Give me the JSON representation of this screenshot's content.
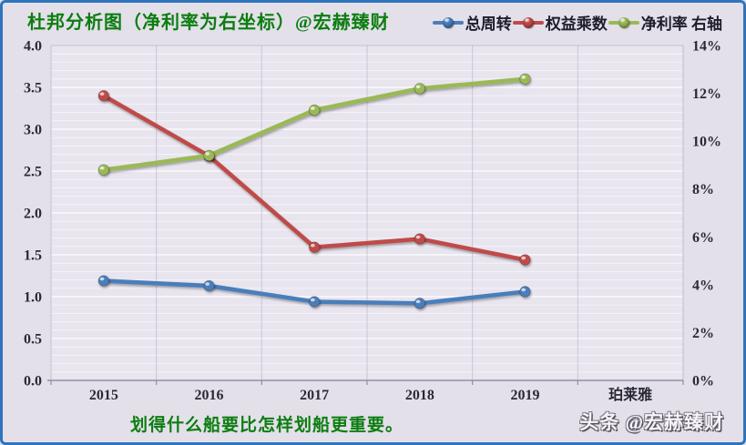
{
  "title": "杜邦分析图（净利率为右坐标）@宏赫臻财",
  "footer": {
    "quote": "划得什么船要比怎样划船更重要。",
    "watermark": "头条 @宏赫臻财"
  },
  "colors": {
    "accent_title_green": "#0c7d10",
    "series_blue": "#4a7ebb",
    "series_red": "#bf4b48",
    "series_green": "#9ab957",
    "frame_blue": "#2f74bd",
    "background": "#e3e0ea",
    "plot_background": "#e8e5ef",
    "axis_text": "#2b2936"
  },
  "chart_data": {
    "type": "line",
    "title": "杜邦分析图（净利率为右坐标）@宏赫臻财",
    "categories": [
      "2015",
      "2016",
      "2017",
      "2018",
      "2019",
      "珀莱雅"
    ],
    "series": [
      {
        "name": "总周转",
        "axis": "left",
        "color": "#4a7ebb",
        "values": [
          1.19,
          1.13,
          0.94,
          0.92,
          1.06
        ]
      },
      {
        "name": "权益乘数",
        "axis": "left",
        "color": "#bf4b48",
        "values": [
          3.4,
          2.68,
          1.59,
          1.69,
          1.44
        ]
      },
      {
        "name": "净利率 右轴",
        "axis": "right",
        "color": "#9ab957",
        "values": [
          8.8,
          9.4,
          11.3,
          12.2,
          12.6
        ]
      }
    ],
    "left_axis": {
      "min": 0,
      "max": 4,
      "step": 0.5,
      "ticks": [
        "4.0",
        "3.5",
        "3.0",
        "2.5",
        "2.0",
        "1.5",
        "1.0",
        "0.5",
        "0.0"
      ]
    },
    "right_axis": {
      "min": 0,
      "max": 14,
      "step": 2,
      "ticks": [
        "14%",
        "12%",
        "10%",
        "8%",
        "6%",
        "4%",
        "2%",
        "0%"
      ]
    },
    "grid": true,
    "minor_grid_per_major": 5,
    "legend_position": "top-right"
  }
}
